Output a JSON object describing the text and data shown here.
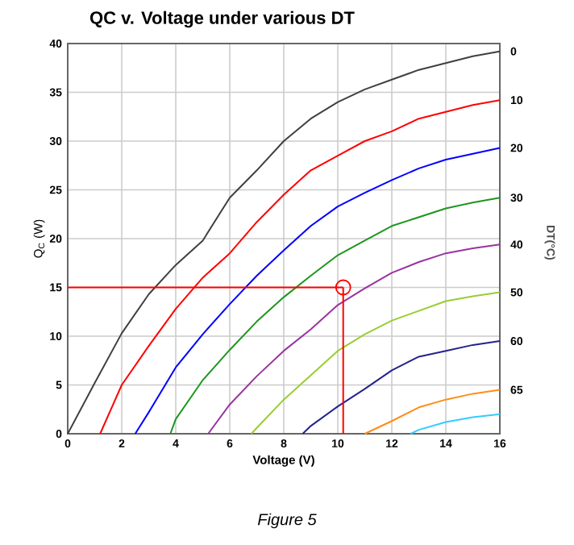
{
  "chart_data": {
    "type": "line",
    "title": "QC v. Voltage under various DT",
    "xlabel": "Voltage (V)",
    "ylabel": "Q$_{C}$ (W)",
    "y2label": "DT(°C)",
    "xlim": [
      0,
      16
    ],
    "ylim": [
      0,
      40
    ],
    "xticks": [
      0,
      2,
      4,
      6,
      8,
      10,
      12,
      14,
      16
    ],
    "yticks": [
      0,
      5,
      10,
      15,
      20,
      25,
      30,
      35,
      40
    ],
    "grid": true,
    "marker": "none",
    "line_style": "solid",
    "series": [
      {
        "name": "0",
        "color": "#404040",
        "x": [
          0,
          1,
          2,
          3,
          4,
          5,
          6,
          7,
          8,
          9,
          10,
          11,
          12,
          13,
          14,
          15,
          16
        ],
        "values": [
          0,
          5.2,
          10.3,
          14.3,
          17.3,
          19.8,
          24.2,
          27,
          30,
          32.3,
          34,
          35.3,
          36.3,
          37.3,
          38,
          38.7,
          39.2
        ]
      },
      {
        "name": "10",
        "color": "#ff0000",
        "x": [
          1.2,
          2,
          3,
          4,
          5,
          6,
          7,
          8,
          9,
          10,
          11,
          12,
          13,
          14,
          15,
          16
        ],
        "values": [
          0,
          5,
          9,
          12.8,
          16,
          18.5,
          21.7,
          24.5,
          27,
          28.5,
          30,
          31,
          32.3,
          33,
          33.7,
          34.2
        ]
      },
      {
        "name": "20",
        "color": "#0000ff",
        "x": [
          2.5,
          3,
          4,
          5,
          6,
          7,
          8,
          9,
          10,
          11,
          12,
          13,
          14,
          15,
          16
        ],
        "values": [
          0,
          2.2,
          6.8,
          10.2,
          13.3,
          16.2,
          18.8,
          21.3,
          23.3,
          24.7,
          26,
          27.2,
          28.1,
          28.7,
          29.3
        ]
      },
      {
        "name": "30",
        "color": "#1e961e",
        "x": [
          3.8,
          4,
          5,
          6,
          7,
          8,
          9,
          10,
          11,
          12,
          13,
          14,
          15,
          16
        ],
        "values": [
          0,
          1.5,
          5.5,
          8.6,
          11.5,
          14,
          16.2,
          18.3,
          19.8,
          21.3,
          22.2,
          23.1,
          23.7,
          24.2
        ]
      },
      {
        "name": "40",
        "color": "#9933a0",
        "x": [
          5.2,
          6,
          7,
          8,
          9,
          10,
          11,
          12,
          13,
          14,
          15,
          16
        ],
        "values": [
          0,
          3,
          5.9,
          8.5,
          10.7,
          13.2,
          14.9,
          16.5,
          17.6,
          18.5,
          19,
          19.4
        ]
      },
      {
        "name": "50",
        "color": "#9acd32",
        "x": [
          6.8,
          7,
          8,
          9,
          10,
          11,
          12,
          13,
          14,
          15,
          16
        ],
        "values": [
          0,
          0.6,
          3.5,
          6,
          8.5,
          10.2,
          11.6,
          12.6,
          13.6,
          14.1,
          14.5
        ]
      },
      {
        "name": "60",
        "color": "#23238c",
        "x": [
          8.7,
          9,
          10,
          11,
          12,
          13,
          14,
          15,
          16
        ],
        "values": [
          0,
          0.8,
          2.8,
          4.6,
          6.5,
          7.9,
          8.5,
          9.1,
          9.5
        ]
      },
      {
        "name": "65",
        "color": "#ff8c1a",
        "x": [
          11,
          12,
          13,
          14,
          15,
          16
        ],
        "values": [
          0,
          1.3,
          2.7,
          3.5,
          4.1,
          4.5
        ]
      },
      {
        "color": "#33ccff",
        "x": [
          12.7,
          13,
          14,
          15,
          16
        ],
        "values": [
          0,
          0.4,
          1.2,
          1.7,
          2.0
        ]
      },
      {
        "type": "scatter",
        "marker": "circle",
        "color": "#ff0000",
        "x": [
          10.2
        ],
        "values": [
          15
        ]
      }
    ],
    "ref_lines": [
      {
        "axis": "y",
        "value": 15,
        "color": "#ff0000"
      },
      {
        "axis": "x",
        "value": 10.2,
        "color": "#ff0000"
      }
    ],
    "annotations": [
      "Figure 5"
    ]
  }
}
